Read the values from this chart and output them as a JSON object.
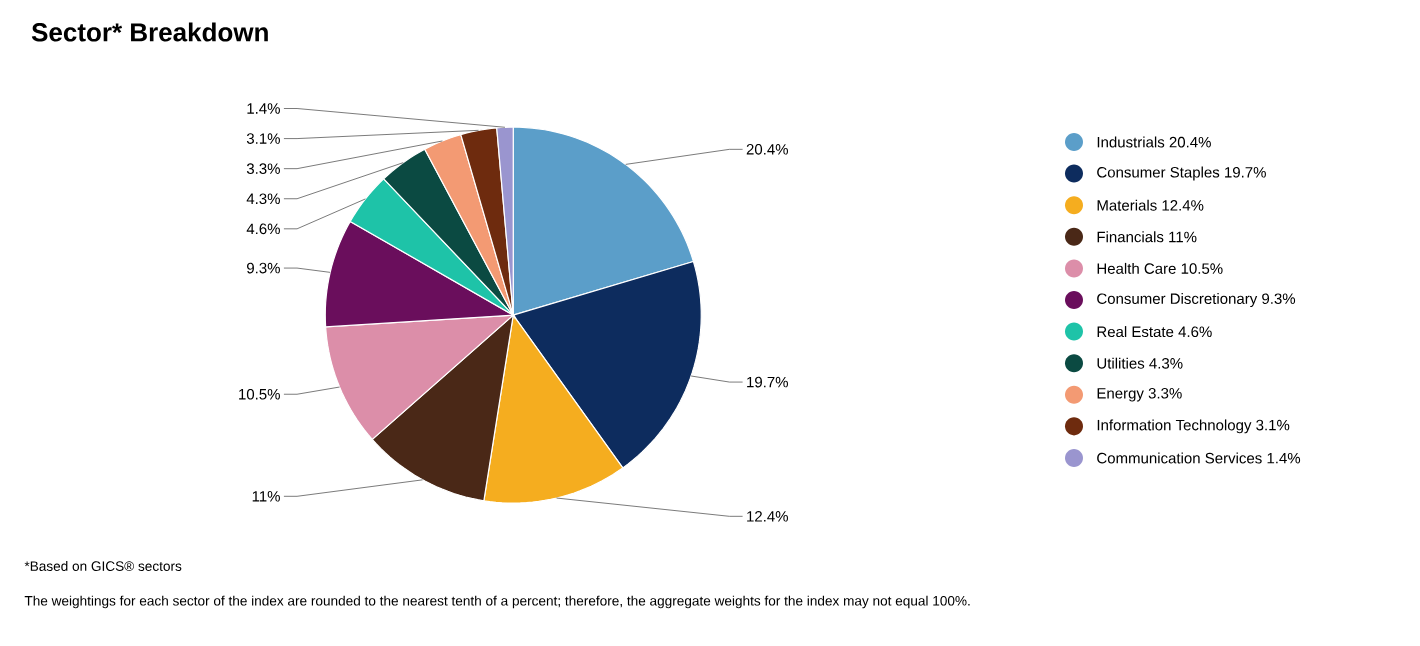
{
  "chart_data": {
    "type": "pie",
    "title": "Sector* Breakdown",
    "categories": [
      "Industrials",
      "Consumer Staples",
      "Materials",
      "Financials",
      "Health Care",
      "Consumer Discretionary",
      "Real Estate",
      "Utilities",
      "Energy",
      "Information Technology",
      "Communication Services"
    ],
    "values": [
      20.4,
      19.7,
      12.4,
      11,
      10.5,
      9.3,
      4.6,
      4.3,
      3.3,
      3.1,
      1.4
    ],
    "colors": [
      "#5b9ec9",
      "#0d2c5e",
      "#f5ad1f",
      "#4a2817",
      "#dc8ea9",
      "#6a0e5c",
      "#1ec3a8",
      "#0b4a42",
      "#f39a73",
      "#6e2b0e",
      "#9a95cf"
    ],
    "value_labels": [
      "20.4%",
      "19.7%",
      "12.4%",
      "11%",
      "10.5%",
      "9.3%",
      "4.6%",
      "4.3%",
      "3.3%",
      "3.1%",
      "1.4%"
    ],
    "legend": "right",
    "annotations": [
      "*Based on GICS® sectors",
      "The weightings for each sector of the index are rounded to the nearest tenth of a percent; therefore, the aggregate weights for the index may not equal 100%."
    ]
  }
}
